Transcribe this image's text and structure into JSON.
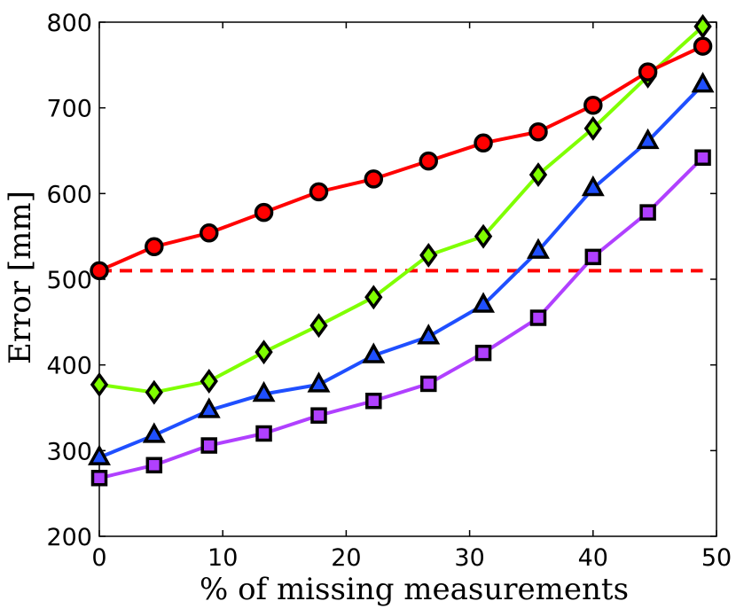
{
  "chart_data": {
    "type": "line",
    "title": "",
    "xlabel": "% of missing measurements",
    "ylabel": "Error [mm]",
    "xlim": [
      0,
      50
    ],
    "ylim": [
      200,
      800
    ],
    "xticks": [
      0,
      10,
      20,
      30,
      40,
      50
    ],
    "yticks": [
      200,
      300,
      400,
      500,
      600,
      700,
      800
    ],
    "grid": false,
    "legend": "none",
    "x": [
      0,
      4.44,
      8.89,
      13.33,
      17.78,
      22.22,
      26.67,
      31.11,
      35.56,
      40.0,
      44.44,
      48.89
    ],
    "series": [
      {
        "name": "red-circle",
        "color": "#ff0000",
        "marker": "circle",
        "values": [
          510,
          538,
          554,
          578,
          602,
          617,
          638,
          659,
          672,
          703,
          742,
          772
        ]
      },
      {
        "name": "green-diamond",
        "color": "#7fff00",
        "marker": "diamond",
        "values": [
          377,
          368,
          381,
          415,
          446,
          479,
          528,
          550,
          622,
          676,
          737,
          795
        ]
      },
      {
        "name": "blue-triangle",
        "color": "#1f4fff",
        "marker": "triangle",
        "values": [
          292,
          318,
          347,
          366,
          377,
          411,
          433,
          470,
          533,
          606,
          661,
          727
        ]
      },
      {
        "name": "purple-square",
        "color": "#b040ff",
        "marker": "square",
        "values": [
          268,
          283,
          306,
          320,
          341,
          358,
          378,
          414,
          455,
          526,
          578,
          642
        ]
      }
    ],
    "reference_lines": [
      {
        "name": "baseline",
        "y": 510,
        "x_range": [
          0,
          48.89
        ],
        "color": "#ff0000",
        "style": "dashed"
      }
    ]
  }
}
